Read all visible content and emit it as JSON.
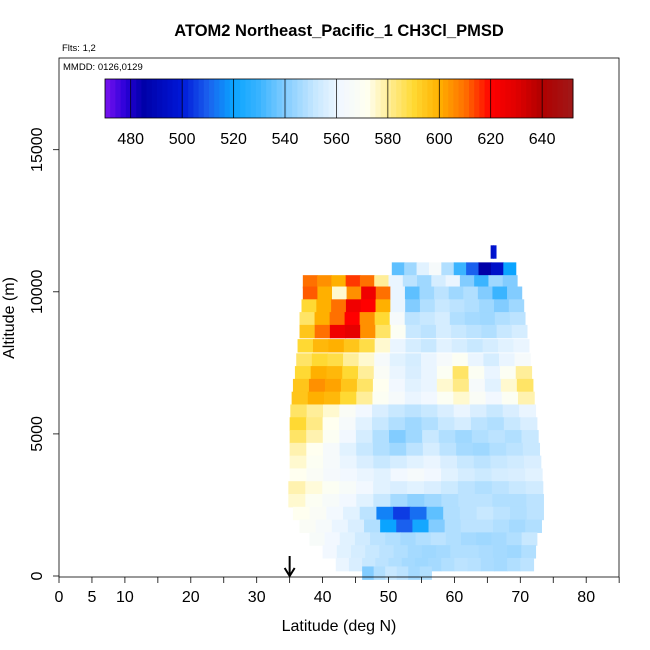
{
  "chart_data": {
    "type": "heatmap",
    "title": "ATOM2 Northeast_Pacific_1 CH3Cl_PMSD",
    "flights_label": "Flts: 1,2",
    "dates_label": "MMDD: 0126,0129",
    "xlabel": "Latitude (deg N)",
    "ylabel": "Altitude (m)",
    "xlim": [
      0,
      85
    ],
    "ylim": [
      0,
      17500
    ],
    "x_ticks": [
      0,
      5,
      10,
      15,
      20,
      25,
      30,
      35,
      40,
      45,
      50,
      55,
      60,
      65,
      70,
      75,
      80,
      85
    ],
    "x_tick_labels": [
      "0",
      "5",
      "10",
      "20",
      "30",
      "40",
      "50",
      "60",
      "70",
      "80"
    ],
    "x_tick_label_values": [
      0,
      5,
      10,
      20,
      30,
      40,
      50,
      60,
      70,
      80
    ],
    "y_ticks": [
      0,
      5000,
      10000,
      15000
    ],
    "y_tick_labels": [
      "0",
      "5000",
      "10000",
      "15000"
    ],
    "colorbar": {
      "range": [
        470,
        652
      ],
      "ticks": [
        480,
        500,
        520,
        540,
        560,
        580,
        600,
        620,
        640
      ],
      "tick_labels": [
        "480",
        "500",
        "520",
        "540",
        "560",
        "580",
        "600",
        "620",
        "640"
      ],
      "stops": [
        [
          470,
          "#7a12f0"
        ],
        [
          478,
          "#2a00d8"
        ],
        [
          485,
          "#0000a8"
        ],
        [
          500,
          "#0018d8"
        ],
        [
          510,
          "#1a60ee"
        ],
        [
          520,
          "#0aa4ff"
        ],
        [
          530,
          "#3ab4ff"
        ],
        [
          540,
          "#82ccff"
        ],
        [
          552,
          "#c8e8ff"
        ],
        [
          562,
          "#f2f8ff"
        ],
        [
          572,
          "#fffff0"
        ],
        [
          580,
          "#ffee99"
        ],
        [
          590,
          "#ffd933"
        ],
        [
          600,
          "#ffb000"
        ],
        [
          610,
          "#ff7000"
        ],
        [
          620,
          "#ff0000"
        ],
        [
          630,
          "#e00000"
        ],
        [
          640,
          "#b00000"
        ],
        [
          652,
          "#a01818"
        ]
      ]
    },
    "marker": {
      "latitude": 35,
      "description": "arrow"
    },
    "rows": [
      {
        "alt": 11400,
        "lat0": 65.5,
        "lat1": 66.3,
        "values": [
          495,
          498
        ]
      },
      {
        "alt": 10800,
        "lat0": 50.5,
        "lat1": 69.3,
        "values": [
          535,
          545,
          558,
          565,
          548,
          530,
          510,
          485,
          495,
          520
        ]
      },
      {
        "alt": 10350,
        "lat0": 37.0,
        "lat1": 69.5,
        "values": [
          610,
          605,
          600,
          615,
          610,
          580,
          560,
          550,
          545,
          555,
          560,
          540,
          530,
          545,
          540
        ]
      },
      {
        "alt": 9950,
        "lat0": 37.0,
        "lat1": 70.2,
        "values": [
          612,
          600,
          575,
          605,
          625,
          610,
          560,
          535,
          545,
          550,
          545,
          548,
          540,
          530,
          540
        ]
      },
      {
        "alt": 9500,
        "lat0": 36.8,
        "lat1": 70.5,
        "values": [
          590,
          600,
          610,
          625,
          620,
          600,
          560,
          540,
          548,
          552,
          550,
          548,
          545,
          540,
          545
        ]
      },
      {
        "alt": 9050,
        "lat0": 36.5,
        "lat1": 70.7,
        "values": [
          585,
          600,
          610,
          620,
          605,
          590,
          565,
          550,
          552,
          555,
          548,
          546,
          545,
          548,
          550
        ]
      },
      {
        "alt": 8600,
        "lat0": 36.5,
        "lat1": 71.0,
        "values": [
          595,
          610,
          625,
          628,
          605,
          585,
          570,
          552,
          550,
          555,
          552,
          550,
          548,
          552,
          555
        ]
      },
      {
        "alt": 8100,
        "lat0": 36.2,
        "lat1": 71.3,
        "values": [
          590,
          598,
          600,
          595,
          588,
          575,
          560,
          555,
          552,
          558,
          555,
          552,
          555,
          558,
          560
        ]
      },
      {
        "alt": 7600,
        "lat0": 36.0,
        "lat1": 71.5,
        "values": [
          585,
          590,
          588,
          580,
          575,
          565,
          558,
          555,
          560,
          565,
          570,
          560,
          555,
          560,
          565
        ]
      },
      {
        "alt": 7150,
        "lat0": 35.8,
        "lat1": 71.7,
        "values": [
          590,
          600,
          598,
          590,
          580,
          568,
          560,
          556,
          560,
          570,
          585,
          570,
          560,
          570,
          580
        ]
      },
      {
        "alt": 6700,
        "lat0": 35.5,
        "lat1": 71.9,
        "values": [
          595,
          605,
          602,
          595,
          585,
          572,
          562,
          558,
          560,
          575,
          582,
          565,
          558,
          575,
          585
        ]
      },
      {
        "alt": 6250,
        "lat0": 35.3,
        "lat1": 72.1,
        "values": [
          595,
          600,
          598,
          590,
          580,
          570,
          565,
          560,
          562,
          570,
          575,
          568,
          562,
          570,
          578
        ]
      },
      {
        "alt": 5800,
        "lat0": 35.1,
        "lat1": 72.3,
        "values": [
          585,
          580,
          575,
          568,
          562,
          556,
          552,
          550,
          552,
          556,
          560,
          556,
          552,
          556,
          560
        ]
      },
      {
        "alt": 5350,
        "lat0": 35.0,
        "lat1": 72.5,
        "values": [
          590,
          582,
          572,
          565,
          558,
          552,
          548,
          545,
          548,
          552,
          555,
          550,
          548,
          552,
          556
        ]
      },
      {
        "alt": 4900,
        "lat0": 35.0,
        "lat1": 72.7,
        "values": [
          585,
          578,
          570,
          562,
          555,
          548,
          540,
          545,
          552,
          548,
          545,
          548,
          550,
          548,
          552
        ]
      },
      {
        "alt": 4450,
        "lat0": 35.0,
        "lat1": 72.9,
        "values": [
          578,
          572,
          565,
          558,
          552,
          548,
          545,
          550,
          555,
          550,
          546,
          545,
          548,
          550,
          552
        ]
      },
      {
        "alt": 4000,
        "lat0": 35.0,
        "lat1": 73.1,
        "values": [
          575,
          570,
          565,
          560,
          556,
          552,
          555,
          558,
          560,
          556,
          552,
          550,
          552,
          554,
          556
        ]
      },
      {
        "alt": 3550,
        "lat0": 35.0,
        "lat1": 73.3,
        "values": [
          572,
          568,
          564,
          562,
          560,
          558,
          562,
          565,
          562,
          558,
          555,
          553,
          555,
          556,
          558
        ]
      },
      {
        "alt": 3100,
        "lat0": 34.8,
        "lat1": 73.4,
        "values": [
          578,
          574,
          570,
          566,
          562,
          558,
          556,
          558,
          556,
          553,
          550,
          548,
          550,
          552,
          554
        ]
      },
      {
        "alt": 2650,
        "lat0": 34.8,
        "lat1": 73.5,
        "values": [
          575,
          570,
          566,
          562,
          558,
          552,
          546,
          542,
          545,
          548,
          550,
          550,
          548,
          548,
          550
        ]
      },
      {
        "alt": 2200,
        "lat0": 35.5,
        "lat1": 73.5,
        "values": [
          572,
          568,
          563,
          558,
          550,
          515,
          505,
          512,
          535,
          548,
          550,
          552,
          550,
          548,
          550
        ]
      },
      {
        "alt": 1750,
        "lat0": 36.5,
        "lat1": 73.2,
        "values": [
          568,
          565,
          560,
          556,
          548,
          520,
          510,
          522,
          540,
          548,
          550,
          550,
          548,
          546,
          548
        ]
      },
      {
        "alt": 1300,
        "lat0": 38.0,
        "lat1": 72.5,
        "values": [
          566,
          562,
          558,
          554,
          550,
          548,
          546,
          548,
          550,
          548,
          546,
          545,
          546,
          548,
          552
        ]
      },
      {
        "alt": 850,
        "lat0": 40.0,
        "lat1": 72.3,
        "values": [
          562,
          558,
          555,
          552,
          550,
          548,
          546,
          545,
          546,
          548,
          548,
          547,
          546,
          545,
          548
        ]
      },
      {
        "alt": 400,
        "lat0": 42.0,
        "lat1": 72.0,
        "values": [
          560,
          556,
          552,
          550,
          548,
          546,
          545,
          546,
          548,
          550,
          549,
          547,
          546,
          548,
          550
        ]
      },
      {
        "alt": 100,
        "lat0": 46.0,
        "lat1": 56.5,
        "values": [
          540,
          548,
          552,
          550,
          546,
          548
        ]
      }
    ]
  }
}
